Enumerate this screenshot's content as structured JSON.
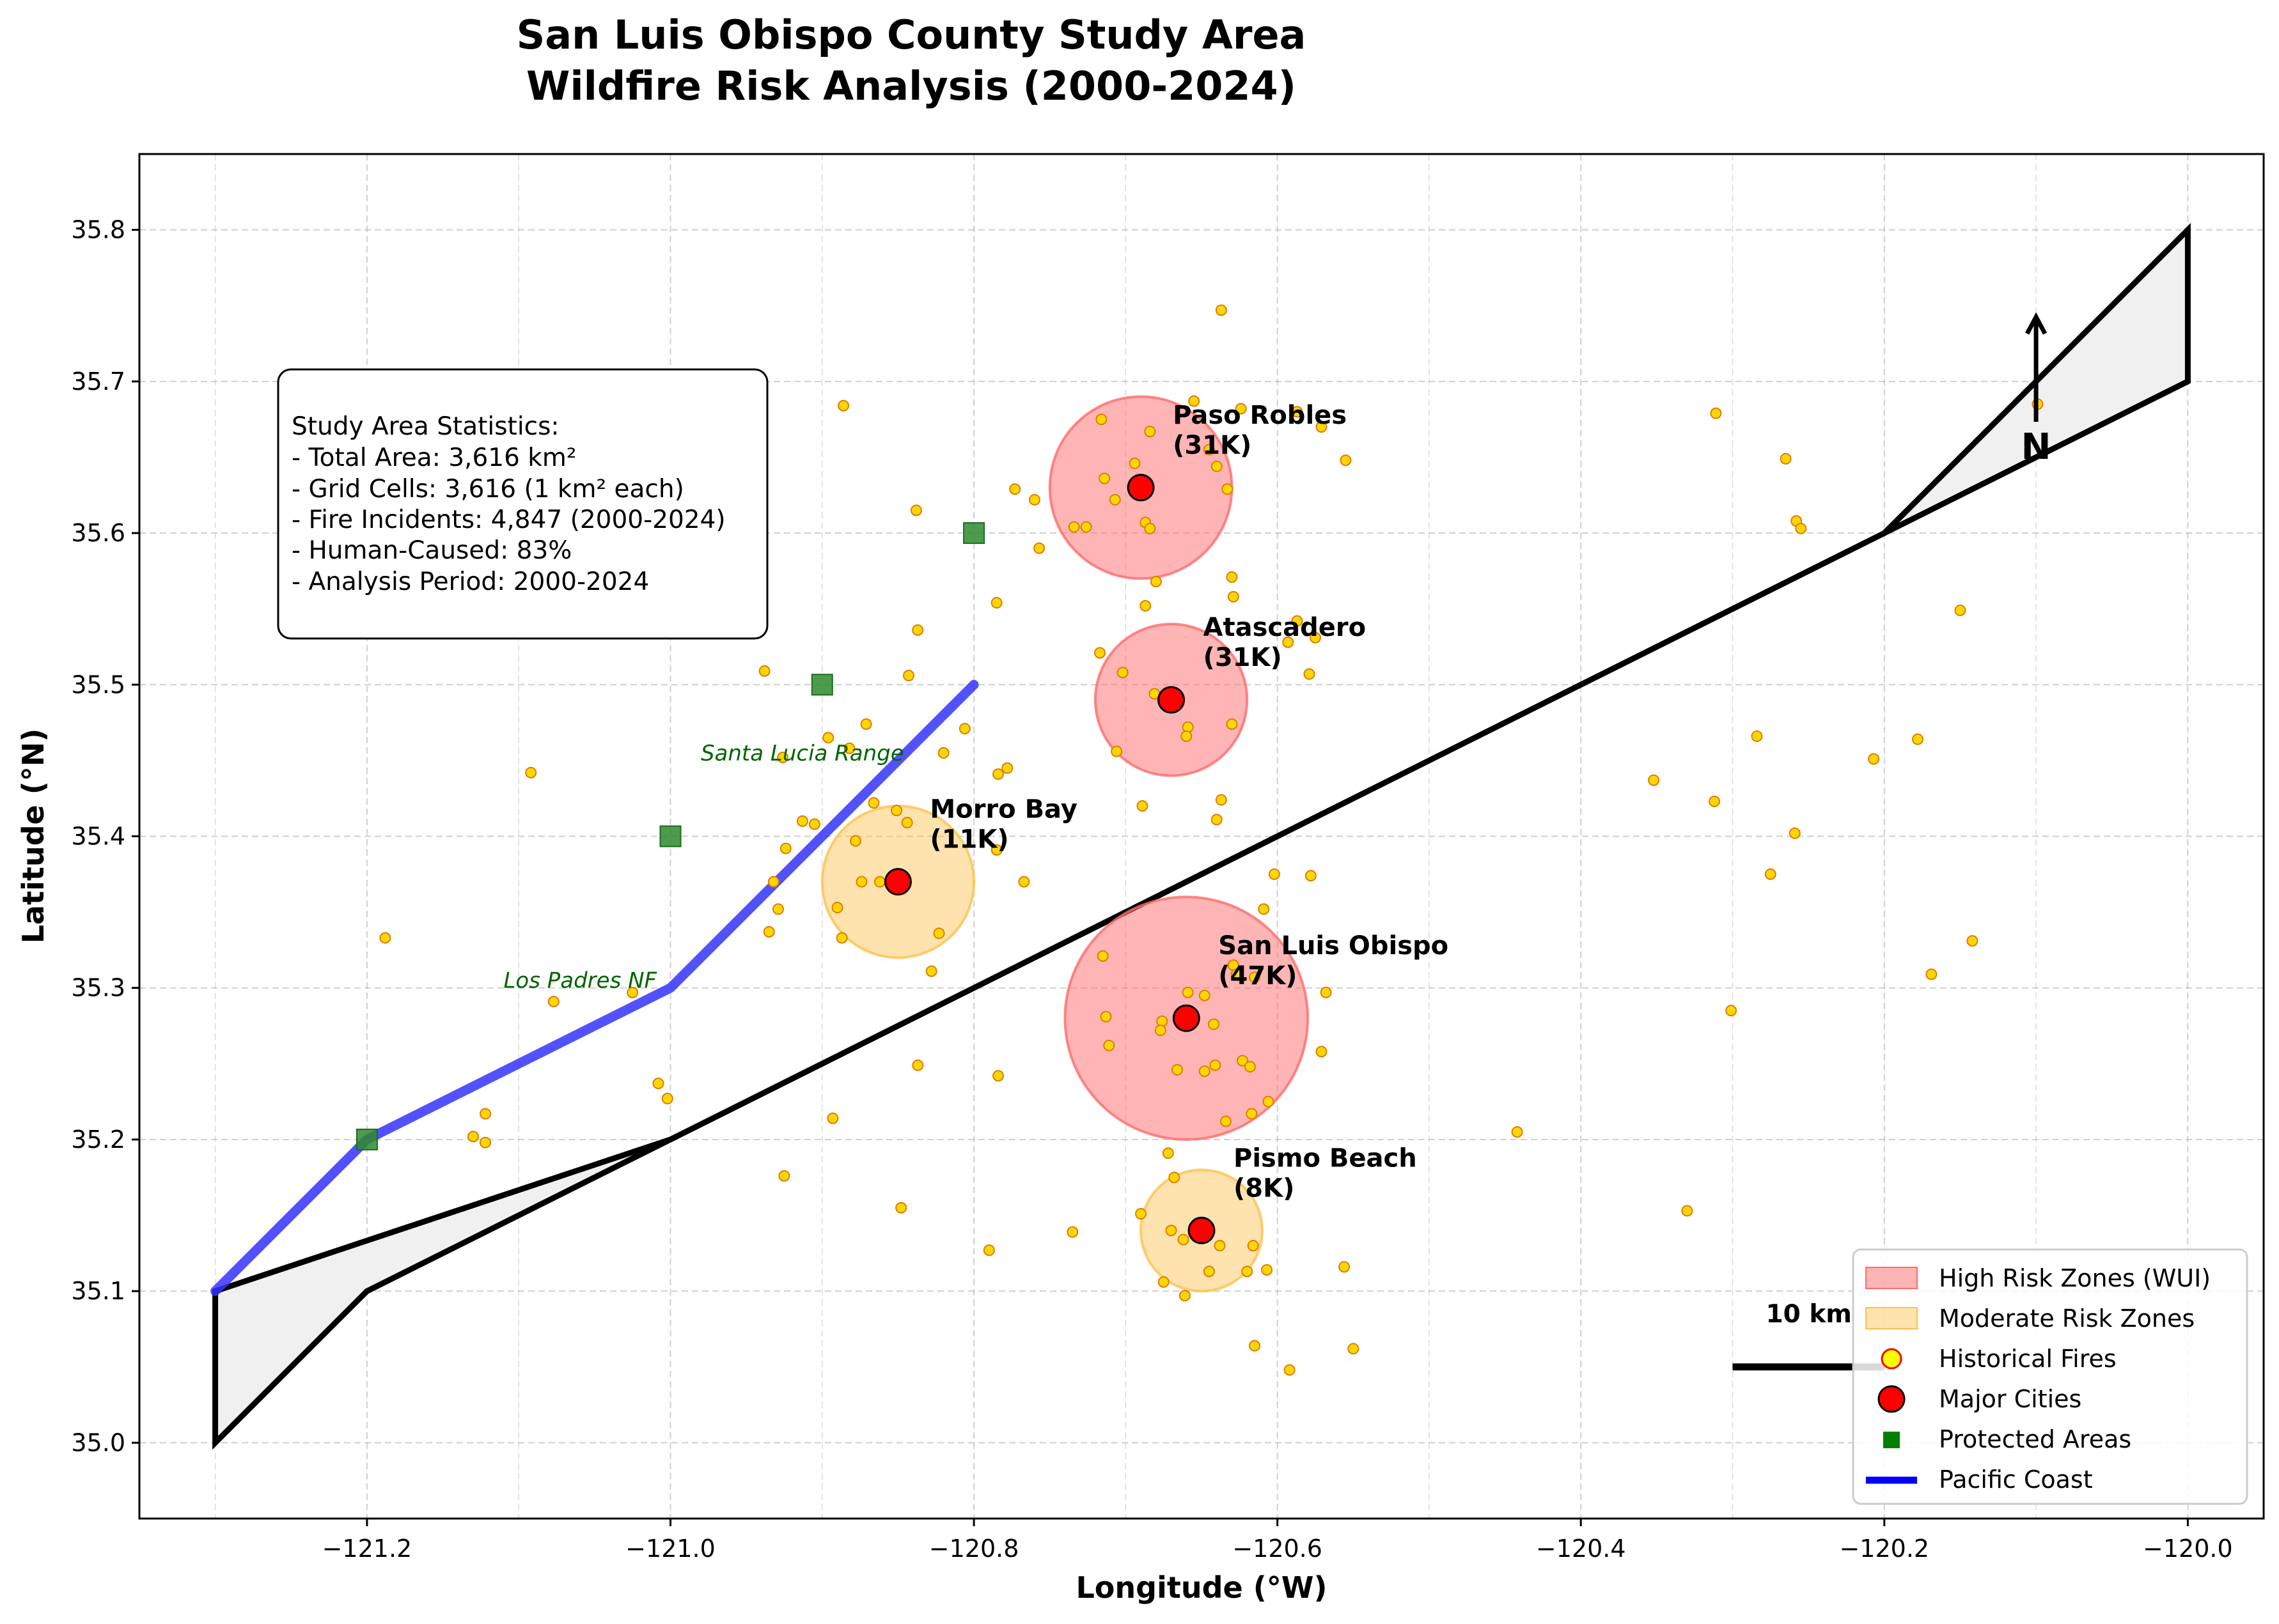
{
  "map": {
    "title_line1": "San Luis Obispo County Study Area",
    "title_line2": "Wildfire Risk Analysis (2000-2024)",
    "xlabel": "Longitude (°W)",
    "ylabel": "Latitude (°N)",
    "xlim": [
      -121.35,
      -119.95
    ],
    "ylim": [
      34.95,
      35.85
    ],
    "xticks": [
      {
        "v": -121.2,
        "label": "−121.2"
      },
      {
        "v": -121.0,
        "label": "−121.0"
      },
      {
        "v": -120.8,
        "label": "−120.8"
      },
      {
        "v": -120.6,
        "label": "−120.6"
      },
      {
        "v": -120.4,
        "label": "−120.4"
      },
      {
        "v": -120.2,
        "label": "−120.2"
      },
      {
        "v": -120.0,
        "label": "−120.0"
      }
    ],
    "yticks": [
      {
        "v": 35.0,
        "label": "35.0"
      },
      {
        "v": 35.1,
        "label": "35.1"
      },
      {
        "v": 35.2,
        "label": "35.2"
      },
      {
        "v": 35.3,
        "label": "35.3"
      },
      {
        "v": 35.4,
        "label": "35.4"
      },
      {
        "v": 35.5,
        "label": "35.5"
      },
      {
        "v": 35.6,
        "label": "35.6"
      },
      {
        "v": 35.7,
        "label": "35.7"
      },
      {
        "v": 35.8,
        "label": "35.8"
      }
    ],
    "grid": true,
    "colors": {
      "high_risk": "#ff6b6b",
      "moderate_risk": "#ffc04d",
      "fire_fill": "#ffd700",
      "fire_edge": "#e07b00",
      "city": "#ff0000",
      "protected": "#2e8b2e",
      "coast": "#3333ff",
      "boundary_fill": "#f0f0f0",
      "label_green": "#006400"
    },
    "boundary": [
      [
        -121.3,
        35.0
      ],
      [
        -121.3,
        35.1
      ],
      [
        -121.0,
        35.2
      ],
      [
        -120.2,
        35.6
      ],
      [
        -120.0,
        35.8
      ],
      [
        -120.0,
        35.7
      ],
      [
        -120.2,
        35.6
      ],
      [
        -121.0,
        35.2
      ],
      [
        -121.2,
        35.1
      ],
      [
        -121.3,
        35.0
      ]
    ],
    "coast": [
      [
        -121.3,
        35.1
      ],
      [
        -121.2,
        35.2
      ],
      [
        -121.0,
        35.3
      ],
      [
        -120.9,
        35.4
      ],
      [
        -120.8,
        35.5
      ]
    ],
    "protected_areas": [
      [
        -121.2,
        35.2
      ],
      [
        -121.0,
        35.4
      ],
      [
        -120.9,
        35.5
      ],
      [
        -120.8,
        35.6
      ]
    ],
    "region_labels": [
      {
        "name": "Santa Lucia Range",
        "lon": -120.98,
        "lat": 35.45
      },
      {
        "name": "Los Padres NF",
        "lon": -121.11,
        "lat": 35.3
      }
    ],
    "cities": [
      {
        "name": "Paso Robles",
        "pop": "(31K)",
        "lon": -120.69,
        "lat": 35.63,
        "risk": "high",
        "radius": 0.06
      },
      {
        "name": "Atascadero",
        "pop": "(31K)",
        "lon": -120.67,
        "lat": 35.49,
        "risk": "high",
        "radius": 0.05
      },
      {
        "name": "Morro Bay",
        "pop": "(11K)",
        "lon": -120.85,
        "lat": 35.37,
        "risk": "moderate",
        "radius": 0.05
      },
      {
        "name": "San Luis Obispo",
        "pop": "(47K)",
        "lon": -120.66,
        "lat": 35.28,
        "risk": "high",
        "radius": 0.08
      },
      {
        "name": "Pismo Beach",
        "pop": "(8K)",
        "lon": -120.65,
        "lat": 35.14,
        "risk": "moderate",
        "radius": 0.04
      }
    ],
    "fires": [
      [
        -120.637,
        35.747
      ],
      [
        -121.046,
        35.694
      ],
      [
        -120.886,
        35.684
      ],
      [
        -120.716,
        35.675
      ],
      [
        -120.655,
        35.687
      ],
      [
        -120.624,
        35.682
      ],
      [
        -120.587,
        35.68
      ],
      [
        -120.571,
        35.67
      ],
      [
        -120.555,
        35.648
      ],
      [
        -120.311,
        35.679
      ],
      [
        -120.265,
        35.649
      ],
      [
        -120.099,
        35.685
      ],
      [
        -120.694,
        35.646
      ],
      [
        -120.684,
        35.667
      ],
      [
        -120.64,
        35.644
      ],
      [
        -120.645,
        35.655
      ],
      [
        -120.633,
        35.629
      ],
      [
        -120.714,
        35.636
      ],
      [
        -120.726,
        35.604
      ],
      [
        -120.734,
        35.604
      ],
      [
        -120.687,
        35.607
      ],
      [
        -120.684,
        35.603
      ],
      [
        -120.707,
        35.622
      ],
      [
        -120.773,
        35.629
      ],
      [
        -120.76,
        35.622
      ],
      [
        -120.757,
        35.59
      ],
      [
        -120.838,
        35.615
      ],
      [
        -121.014,
        35.628
      ],
      [
        -120.258,
        35.608
      ],
      [
        -120.255,
        35.603
      ],
      [
        -120.63,
        35.571
      ],
      [
        -120.629,
        35.558
      ],
      [
        -120.587,
        35.542
      ],
      [
        -120.575,
        35.531
      ],
      [
        -120.593,
        35.528
      ],
      [
        -120.579,
        35.507
      ],
      [
        -120.63,
        35.474
      ],
      [
        -120.659,
        35.472
      ],
      [
        -120.66,
        35.466
      ],
      [
        -120.681,
        35.494
      ],
      [
        -120.702,
        35.508
      ],
      [
        -120.717,
        35.521
      ],
      [
        -120.706,
        35.456
      ],
      [
        -120.687,
        35.552
      ],
      [
        -120.68,
        35.568
      ],
      [
        -120.785,
        35.554
      ],
      [
        -120.837,
        35.536
      ],
      [
        -120.843,
        35.506
      ],
      [
        -120.938,
        35.509
      ],
      [
        -120.806,
        35.471
      ],
      [
        -120.896,
        35.465
      ],
      [
        -120.882,
        35.458
      ],
      [
        -120.871,
        35.474
      ],
      [
        -120.82,
        35.455
      ],
      [
        -120.778,
        35.445
      ],
      [
        -120.784,
        35.441
      ],
      [
        -120.926,
        35.452
      ],
      [
        -120.15,
        35.549
      ],
      [
        -120.284,
        35.466
      ],
      [
        -120.178,
        35.464
      ],
      [
        -120.207,
        35.451
      ],
      [
        -121.092,
        35.442
      ],
      [
        -120.352,
        35.437
      ],
      [
        -120.312,
        35.423
      ],
      [
        -120.259,
        35.402
      ],
      [
        -120.275,
        35.375
      ],
      [
        -120.637,
        35.424
      ],
      [
        -120.64,
        35.411
      ],
      [
        -120.689,
        35.42
      ],
      [
        -120.866,
        35.422
      ],
      [
        -120.851,
        35.417
      ],
      [
        -120.844,
        35.409
      ],
      [
        -120.913,
        35.41
      ],
      [
        -120.905,
        35.408
      ],
      [
        -120.878,
        35.397
      ],
      [
        -120.924,
        35.392
      ],
      [
        -120.785,
        35.391
      ],
      [
        -120.767,
        35.37
      ],
      [
        -120.874,
        35.37
      ],
      [
        -120.862,
        35.37
      ],
      [
        -120.602,
        35.375
      ],
      [
        -120.578,
        35.374
      ],
      [
        -120.932,
        35.37
      ],
      [
        -120.89,
        35.353
      ],
      [
        -120.929,
        35.352
      ],
      [
        -120.935,
        35.337
      ],
      [
        -120.887,
        35.333
      ],
      [
        -120.823,
        35.336
      ],
      [
        -120.828,
        35.311
      ],
      [
        -121.188,
        35.333
      ],
      [
        -120.609,
        35.352
      ],
      [
        -120.142,
        35.331
      ],
      [
        -120.169,
        35.309
      ],
      [
        -120.715,
        35.321
      ],
      [
        -120.629,
        35.315
      ],
      [
        -120.627,
        35.309
      ],
      [
        -120.615,
        35.307
      ],
      [
        -120.568,
        35.297
      ],
      [
        -120.659,
        35.297
      ],
      [
        -120.648,
        35.295
      ],
      [
        -121.077,
        35.291
      ],
      [
        -121.025,
        35.297
      ],
      [
        -120.713,
        35.281
      ],
      [
        -120.676,
        35.278
      ],
      [
        -120.677,
        35.272
      ],
      [
        -120.642,
        35.276
      ],
      [
        -120.711,
        35.262
      ],
      [
        -120.571,
        35.258
      ],
      [
        -120.623,
        35.252
      ],
      [
        -120.618,
        35.248
      ],
      [
        -120.641,
        35.249
      ],
      [
        -120.648,
        35.245
      ],
      [
        -120.666,
        35.246
      ],
      [
        -120.837,
        35.249
      ],
      [
        -120.784,
        35.242
      ],
      [
        -121.008,
        35.237
      ],
      [
        -121.002,
        35.227
      ],
      [
        -120.606,
        35.225
      ],
      [
        -120.617,
        35.217
      ],
      [
        -120.634,
        35.212
      ],
      [
        -121.122,
        35.217
      ],
      [
        -121.13,
        35.202
      ],
      [
        -121.122,
        35.198
      ],
      [
        -120.893,
        35.214
      ],
      [
        -120.442,
        35.205
      ],
      [
        -120.301,
        35.285
      ],
      [
        -120.672,
        35.191
      ],
      [
        -120.668,
        35.175
      ],
      [
        -120.925,
        35.176
      ],
      [
        -120.848,
        35.155
      ],
      [
        -120.69,
        35.151
      ],
      [
        -120.67,
        35.14
      ],
      [
        -120.662,
        35.134
      ],
      [
        -120.638,
        35.13
      ],
      [
        -120.616,
        35.13
      ],
      [
        -120.735,
        35.139
      ],
      [
        -120.79,
        35.127
      ],
      [
        -120.62,
        35.113
      ],
      [
        -120.645,
        35.113
      ],
      [
        -120.607,
        35.114
      ],
      [
        -120.556,
        35.116
      ],
      [
        -120.675,
        35.106
      ],
      [
        -120.661,
        35.097
      ],
      [
        -120.33,
        35.153
      ],
      [
        -120.615,
        35.064
      ],
      [
        -120.55,
        35.062
      ],
      [
        -120.592,
        35.048
      ]
    ],
    "stats": {
      "title": "Study Area Statistics:",
      "lines": [
        "- Total Area: 3,616 km²",
        "- Grid Cells: 3,616 (1 km² each)",
        "- Fire Incidents: 4,847 (2000-2024)",
        "- Human-Caused: 83%",
        "- Analysis Period: 2000-2024"
      ]
    },
    "north": {
      "label": "N",
      "lon": -120.1
    },
    "scale_bar": {
      "label": "10 km",
      "lon_start": -120.3,
      "lon_end": -120.2,
      "lat": 35.05
    },
    "legend": {
      "position": "lower-right",
      "items": [
        {
          "label": "High Risk Zones (WUI)",
          "kind": "patch-high"
        },
        {
          "label": "Moderate Risk Zones",
          "kind": "patch-moderate"
        },
        {
          "label": "Historical Fires",
          "kind": "fire"
        },
        {
          "label": "Major Cities",
          "kind": "city"
        },
        {
          "label": "Protected Areas",
          "kind": "protected"
        },
        {
          "label": "Pacific Coast",
          "kind": "coast"
        }
      ]
    }
  }
}
